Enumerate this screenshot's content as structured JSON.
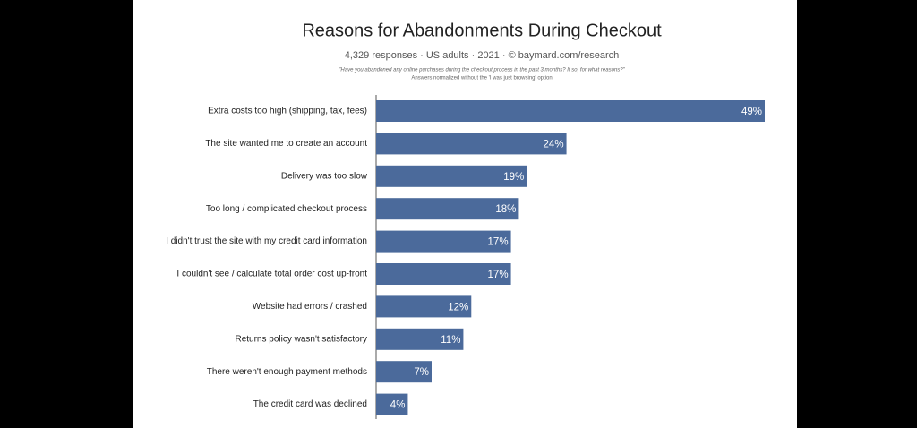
{
  "chart_data": {
    "type": "hbar",
    "title": "Reasons for Abandonments During Checkout",
    "subtitle": "4,329 responses  ·  US adults  ·  2021  ·  ©  baymard.com/research",
    "notes": [
      "\"Have you abandoned any online purchases during the checkout process in the past 3 months? If so, for what reasons?\"",
      "Answers normalized without the 'I was just browsing' option"
    ],
    "categories": [
      "Extra costs too high (shipping, tax, fees)",
      "The site wanted me to create an account",
      "Delivery was too slow",
      "Too long / complicated checkout process",
      "I didn't trust the site with my credit card information",
      "I couldn't see / calculate total order cost up-front",
      "Website had errors / crashed",
      "Returns policy wasn't satisfactory",
      "There weren't enough payment methods",
      "The credit card was declined"
    ],
    "values": [
      49,
      24,
      19,
      18,
      17,
      17,
      12,
      11,
      7,
      4
    ],
    "value_labels": [
      "49%",
      "24%",
      "19%",
      "18%",
      "17%",
      "17%",
      "12%",
      "11%",
      "7%",
      "4%"
    ],
    "color": "#4b6a9b"
  }
}
